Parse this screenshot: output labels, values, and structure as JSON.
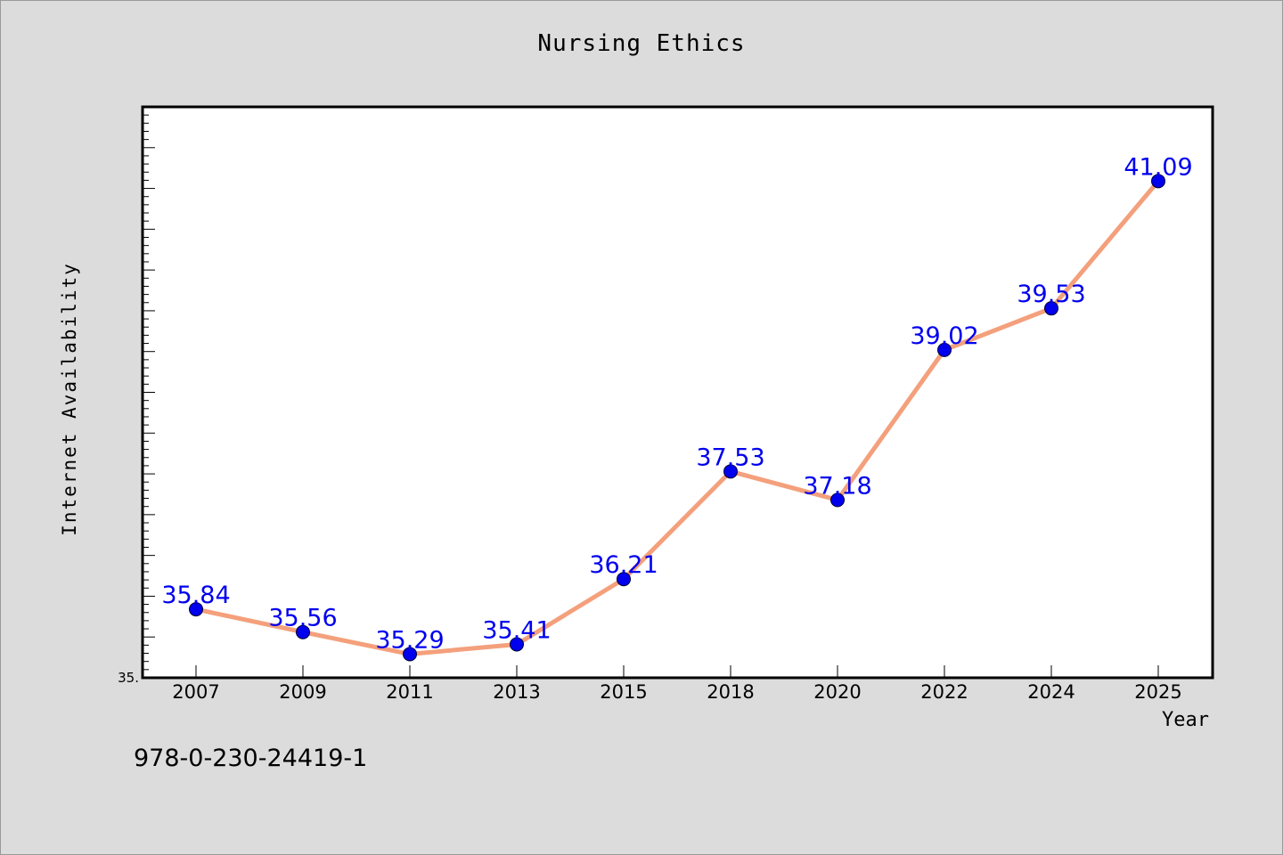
{
  "chart_data": {
    "type": "line",
    "title": "Nursing Ethics",
    "xlabel": "Year",
    "ylabel": "Internet Availability",
    "categories": [
      "2007",
      "2009",
      "2011",
      "2013",
      "2015",
      "2018",
      "2020",
      "2022",
      "2024",
      "2025"
    ],
    "series": [
      {
        "values": [
          35.84,
          35.56,
          35.29,
          35.41,
          36.21,
          37.53,
          37.18,
          39.02,
          39.53,
          41.09
        ],
        "data_labels": [
          "35.84",
          "35.56",
          "35.29",
          "35.41",
          "36.21",
          "37.53",
          "37.18",
          "39.02",
          "39.53",
          "41.09"
        ],
        "line_color": "#f4a07c",
        "marker_color": "#0000ee",
        "label_color": "#0000ee"
      }
    ],
    "ylim": [
      35,
      42
    ],
    "y_tick_labels": [
      "35."
    ],
    "grid": false,
    "legend": "none"
  },
  "footnote": "978-0-230-24419-1",
  "colors": {
    "background": "#dcdcdc",
    "plot_background": "#ffffff",
    "axis": "#000000"
  }
}
